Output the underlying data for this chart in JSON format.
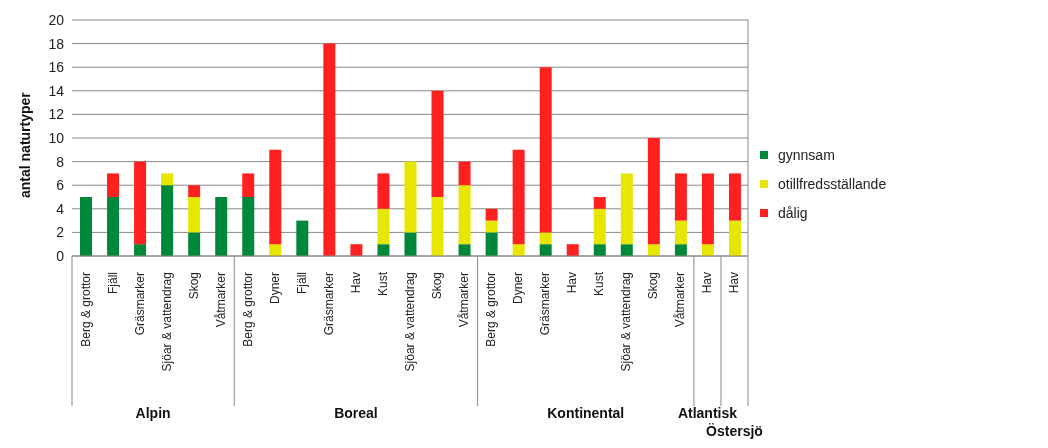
{
  "chart_data": {
    "type": "bar",
    "stacked": true,
    "ylabel": "antal naturtyper",
    "categories": [
      "Berg & grottor",
      "Fjäll",
      "Gräsmarker",
      "Sjöar & vattendrag",
      "Skog",
      "Våtmarker",
      "Berg & grottor",
      "Dyner",
      "Fjäll",
      "Gräsmarker",
      "Hav",
      "Kust",
      "Sjöar & vattendrag",
      "Skog",
      "Våtmarker",
      "Berg & grottor",
      "Dyner",
      "Gräsmarker",
      "Hav",
      "Kust",
      "Sjöar & vattendrag",
      "Skog",
      "Våtmarker",
      "Hav",
      "Hav"
    ],
    "series": [
      {
        "name": "gynnsam",
        "color": "#00883a",
        "values": [
          5,
          5,
          1,
          6,
          2,
          5,
          5,
          0,
          3,
          0,
          0,
          1,
          2,
          0,
          1,
          2,
          0,
          1,
          0,
          1,
          1,
          0,
          1,
          0,
          0
        ]
      },
      {
        "name": "otillfredsställande",
        "color": "#e6e600",
        "values": [
          0,
          0,
          0,
          1,
          3,
          0,
          0,
          1,
          0,
          0,
          0,
          3,
          6,
          5,
          5,
          1,
          1,
          1,
          0,
          3,
          6,
          1,
          2,
          1,
          3
        ]
      },
      {
        "name": "dålig",
        "color": "#ff2020",
        "values": [
          0,
          2,
          7,
          0,
          1,
          0,
          2,
          8,
          0,
          18,
          1,
          3,
          0,
          9,
          2,
          1,
          8,
          14,
          1,
          1,
          0,
          9,
          4,
          6,
          4
        ]
      }
    ],
    "ylim": [
      0,
      20
    ],
    "yticks": [
      0,
      2,
      4,
      6,
      8,
      10,
      12,
      14,
      16,
      18,
      20
    ],
    "grid": "y",
    "legend": "right",
    "annotations": [
      "Alpin",
      "Boreal",
      "Kontinental",
      "Atlantisk",
      "Östersjö"
    ]
  }
}
